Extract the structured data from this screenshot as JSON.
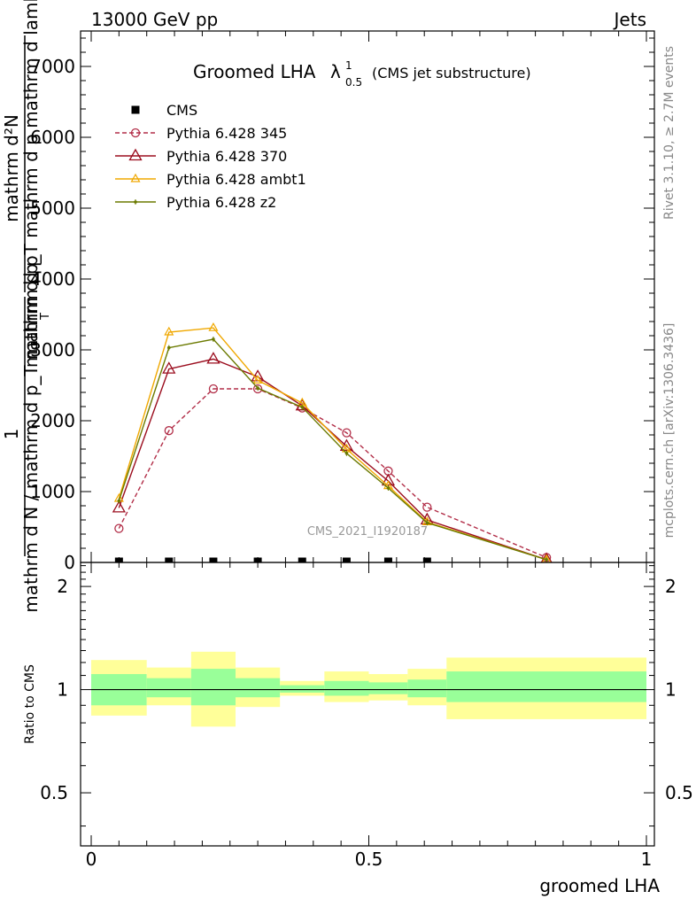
{
  "header": {
    "left": "13000 GeV pp",
    "right": "Jets"
  },
  "title": {
    "main": "Groomed LHA",
    "lambda": "λ",
    "sup": "1",
    "sub": "0.5",
    "suffix": "(CMS jet substructure)"
  },
  "side_labels": {
    "rivet": "Rivet 3.1.10, ≥ 2.7M events",
    "mcplots": "mcplots.cern.ch [arXiv:1306.3436]"
  },
  "analysis_id": "CMS_2021_I1920187",
  "ylabel_main": {
    "one": "1",
    "denominator": "mathrm d N / mathrm d p_T mathrm d p",
    "numerator_line1": "mathrm d²N",
    "numerator_line2": "mathrm d p_T mathrm d p mathrm d lambda",
    "numerator_line3": "T"
  },
  "ylabel_ratio": "Ratio to CMS",
  "xlabel": "groomed LHA",
  "colors": {
    "cms": "#000000",
    "p345": "#b22e48",
    "p370": "#9b0d1e",
    "ambt1": "#f0a800",
    "z2": "#6b7a00",
    "band_inner": "#99ff99",
    "band_outer": "#ffff99"
  },
  "chart_data": [
    {
      "type": "line",
      "panel": "main",
      "xlim": [
        0,
        1
      ],
      "ylim": [
        0,
        7500
      ],
      "x_ticks": [
        "0",
        "0.5",
        "1"
      ],
      "y_ticks": [
        {
          "value": 0,
          "label": "0"
        },
        {
          "value": 1000,
          "label": "1000"
        },
        {
          "value": 2000,
          "label": "2000"
        },
        {
          "value": 3000,
          "label": "3000"
        },
        {
          "value": 4000,
          "label": "4000"
        },
        {
          "value": 5000,
          "label": "5000"
        },
        {
          "value": 6000,
          "label": "6000"
        },
        {
          "value": 7000,
          "label": "7000"
        }
      ],
      "legend_position": "top-left",
      "x": [
        0.05,
        0.14,
        0.22,
        0.3,
        0.38,
        0.46,
        0.535,
        0.605,
        0.82
      ],
      "series": [
        {
          "name": "CMS",
          "key": "cms",
          "marker": "square",
          "dashed": false,
          "values": [
            0,
            0,
            0,
            0,
            0,
            0,
            0,
            0,
            null
          ]
        },
        {
          "name": "Pythia 6.428 345",
          "key": "p345",
          "marker": "circle",
          "dashed": true,
          "values": [
            480,
            1860,
            2450,
            2450,
            2180,
            1830,
            1290,
            780,
            70
          ]
        },
        {
          "name": "Pythia 6.428 370",
          "key": "p370",
          "marker": "triangle",
          "dashed": false,
          "values": [
            770,
            2730,
            2870,
            2620,
            2210,
            1640,
            1150,
            600,
            40
          ]
        },
        {
          "name": "Pythia 6.428 ambt1",
          "key": "ambt1",
          "marker": "triangle-small",
          "dashed": false,
          "values": [
            900,
            3250,
            3310,
            2570,
            2250,
            1600,
            1080,
            570,
            40
          ]
        },
        {
          "name": "Pythia 6.428 z2",
          "key": "z2",
          "marker": "dot",
          "dashed": false,
          "values": [
            870,
            3030,
            3150,
            2460,
            2190,
            1540,
            1050,
            560,
            40
          ]
        }
      ]
    },
    {
      "type": "area",
      "panel": "ratio",
      "xlim": [
        0,
        1
      ],
      "ylim": [
        0.35,
        2.35
      ],
      "y_scale": "log",
      "y_ticks": [
        {
          "value": 0.5,
          "label": "0.5"
        },
        {
          "value": 1,
          "label": "1"
        },
        {
          "value": 2,
          "label": "2"
        }
      ],
      "reference": 1,
      "bins": [
        {
          "x0": 0.0,
          "x1": 0.1,
          "inner": [
            0.9,
            1.11
          ],
          "outer": [
            0.84,
            1.22
          ]
        },
        {
          "x0": 0.1,
          "x1": 0.18,
          "inner": [
            0.95,
            1.08
          ],
          "outer": [
            0.9,
            1.16
          ]
        },
        {
          "x0": 0.18,
          "x1": 0.26,
          "inner": [
            0.9,
            1.15
          ],
          "outer": [
            0.78,
            1.29
          ]
        },
        {
          "x0": 0.26,
          "x1": 0.34,
          "inner": [
            0.95,
            1.08
          ],
          "outer": [
            0.89,
            1.16
          ]
        },
        {
          "x0": 0.34,
          "x1": 0.42,
          "inner": [
            0.98,
            1.03
          ],
          "outer": [
            0.96,
            1.06
          ]
        },
        {
          "x0": 0.42,
          "x1": 0.5,
          "inner": [
            0.96,
            1.06
          ],
          "outer": [
            0.92,
            1.13
          ]
        },
        {
          "x0": 0.5,
          "x1": 0.57,
          "inner": [
            0.97,
            1.05
          ],
          "outer": [
            0.93,
            1.11
          ]
        },
        {
          "x0": 0.57,
          "x1": 0.64,
          "inner": [
            0.95,
            1.07
          ],
          "outer": [
            0.9,
            1.15
          ]
        },
        {
          "x0": 0.64,
          "x1": 1.0,
          "inner": [
            0.92,
            1.13
          ],
          "outer": [
            0.82,
            1.24
          ]
        }
      ]
    }
  ]
}
